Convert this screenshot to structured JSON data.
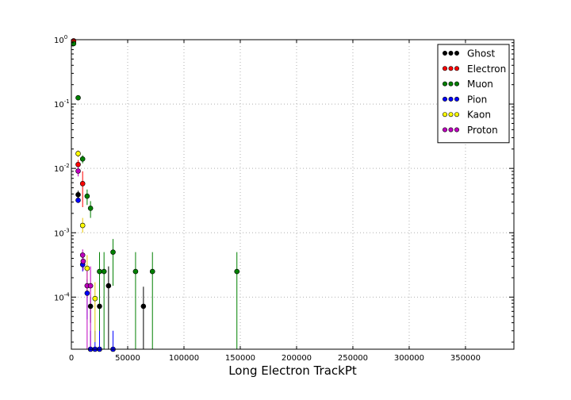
{
  "chart_data": {
    "type": "scatter",
    "xlabel": "Long Electron TrackPt",
    "ylabel": "",
    "xlim": [
      0,
      393000
    ],
    "ylim": [
      1.55e-05,
      1.0
    ],
    "yscale": "log",
    "grid": true,
    "legend_position": "top-right",
    "x_ticks": [
      0,
      50000,
      100000,
      150000,
      200000,
      250000,
      300000,
      350000
    ],
    "y_ticks": [
      {
        "value": 0.0001,
        "base": "10",
        "exp": "-4"
      },
      {
        "value": 0.001,
        "base": "10",
        "exp": "-3"
      },
      {
        "value": 0.01,
        "base": "10",
        "exp": "-2"
      },
      {
        "value": 0.1,
        "base": "10",
        "exp": "-1"
      },
      {
        "value": 1.0,
        "base": "10",
        "exp": "0"
      }
    ],
    "series": [
      {
        "name": "Ghost",
        "color": "#000000",
        "errcolor": "#000000",
        "points": [
          {
            "x": 2000,
            "y": 0.94,
            "lo": 0.9,
            "hi": 0.98
          },
          {
            "x": 6000,
            "y": 0.0039,
            "lo": 0.0033,
            "hi": 0.0045
          },
          {
            "x": 17000,
            "y": 7.2e-05,
            "lo": 4e-05,
            "hi": 0.0001
          },
          {
            "x": 25000,
            "y": 7.2e-05,
            "lo": 4e-05,
            "hi": 0.0001
          },
          {
            "x": 33000,
            "y": 0.00015,
            "lo": 1.55e-05,
            "hi": 0.0003
          },
          {
            "x": 64000,
            "y": 7.2e-05,
            "lo": 1.55e-05,
            "hi": 0.000145
          }
        ]
      },
      {
        "name": "Electron",
        "color": "#ff0000",
        "errcolor": "#ff0000",
        "points": [
          {
            "x": 2000,
            "y": 0.96,
            "lo": 0.93,
            "hi": 0.99
          },
          {
            "x": 6000,
            "y": 0.0115,
            "lo": 0.0095,
            "hi": 0.0135
          },
          {
            "x": 10000,
            "y": 0.0058,
            "lo": 0.0025,
            "hi": 0.009
          }
        ]
      },
      {
        "name": "Muon",
        "color": "#008000",
        "errcolor": "#008000",
        "points": [
          {
            "x": 2000,
            "y": 0.87,
            "lo": 0.83,
            "hi": 0.91
          },
          {
            "x": 6000,
            "y": 0.125,
            "lo": 0.118,
            "hi": 0.132
          },
          {
            "x": 10000,
            "y": 0.014,
            "lo": 0.012,
            "hi": 0.016
          },
          {
            "x": 14000,
            "y": 0.0037,
            "lo": 0.0027,
            "hi": 0.0047
          },
          {
            "x": 17000,
            "y": 0.0024,
            "lo": 0.0017,
            "hi": 0.0031
          },
          {
            "x": 25000,
            "y": 0.00025,
            "lo": 1.55e-05,
            "hi": 0.0005
          },
          {
            "x": 29000,
            "y": 0.00025,
            "lo": 1.55e-05,
            "hi": 0.0005
          },
          {
            "x": 37000,
            "y": 0.0005,
            "lo": 0.00015,
            "hi": 0.0008
          },
          {
            "x": 57000,
            "y": 0.00025,
            "lo": 1.55e-05,
            "hi": 0.0005
          },
          {
            "x": 72000,
            "y": 0.00025,
            "lo": 1.55e-05,
            "hi": 0.0005
          },
          {
            "x": 147000,
            "y": 0.00025,
            "lo": 1.55e-05,
            "hi": 0.0005
          }
        ]
      },
      {
        "name": "Pion",
        "color": "#0000ff",
        "errcolor": "#0000ff",
        "points": [
          {
            "x": 6000,
            "y": 0.0032,
            "lo": 0.0029,
            "hi": 0.0035
          },
          {
            "x": 10000,
            "y": 0.00032,
            "lo": 0.00025,
            "hi": 0.0004
          },
          {
            "x": 14000,
            "y": 0.000115,
            "lo": 4.5e-05,
            "hi": 0.00019
          },
          {
            "x": 17000,
            "y": 1.55e-05,
            "lo": 1.55e-05,
            "hi": 3e-05
          },
          {
            "x": 21000,
            "y": 1.55e-05,
            "lo": 1.55e-05,
            "hi": 3e-05
          },
          {
            "x": 25000,
            "y": 1.55e-05,
            "lo": 1.55e-05,
            "hi": 3e-05
          },
          {
            "x": 37000,
            "y": 1.55e-05,
            "lo": 1.55e-05,
            "hi": 3e-05
          }
        ]
      },
      {
        "name": "Kaon",
        "color": "#ffff00",
        "errcolor": "#e6c800",
        "points": [
          {
            "x": 6000,
            "y": 0.017,
            "lo": 0.015,
            "hi": 0.019
          },
          {
            "x": 10000,
            "y": 0.0013,
            "lo": 0.001,
            "hi": 0.0017
          },
          {
            "x": 14000,
            "y": 0.00028,
            "lo": 0.00012,
            "hi": 0.00045
          },
          {
            "x": 21000,
            "y": 9.5e-05,
            "lo": 2e-05,
            "hi": 0.00017
          }
        ]
      },
      {
        "name": "Proton",
        "color": "#bf00bf",
        "errcolor": "#bf00bf",
        "points": [
          {
            "x": 6000,
            "y": 0.0091,
            "lo": 0.0075,
            "hi": 0.0107
          },
          {
            "x": 10000,
            "y": 0.00045,
            "lo": 0.00035,
            "hi": 0.00055
          },
          {
            "x": 10500,
            "y": 0.00036,
            "lo": 0.00026,
            "hi": 0.00046
          },
          {
            "x": 14000,
            "y": 0.00015,
            "lo": 1.55e-05,
            "hi": 0.0003
          },
          {
            "x": 17000,
            "y": 0.00015,
            "lo": 1.55e-05,
            "hi": 0.0003
          }
        ]
      }
    ]
  }
}
